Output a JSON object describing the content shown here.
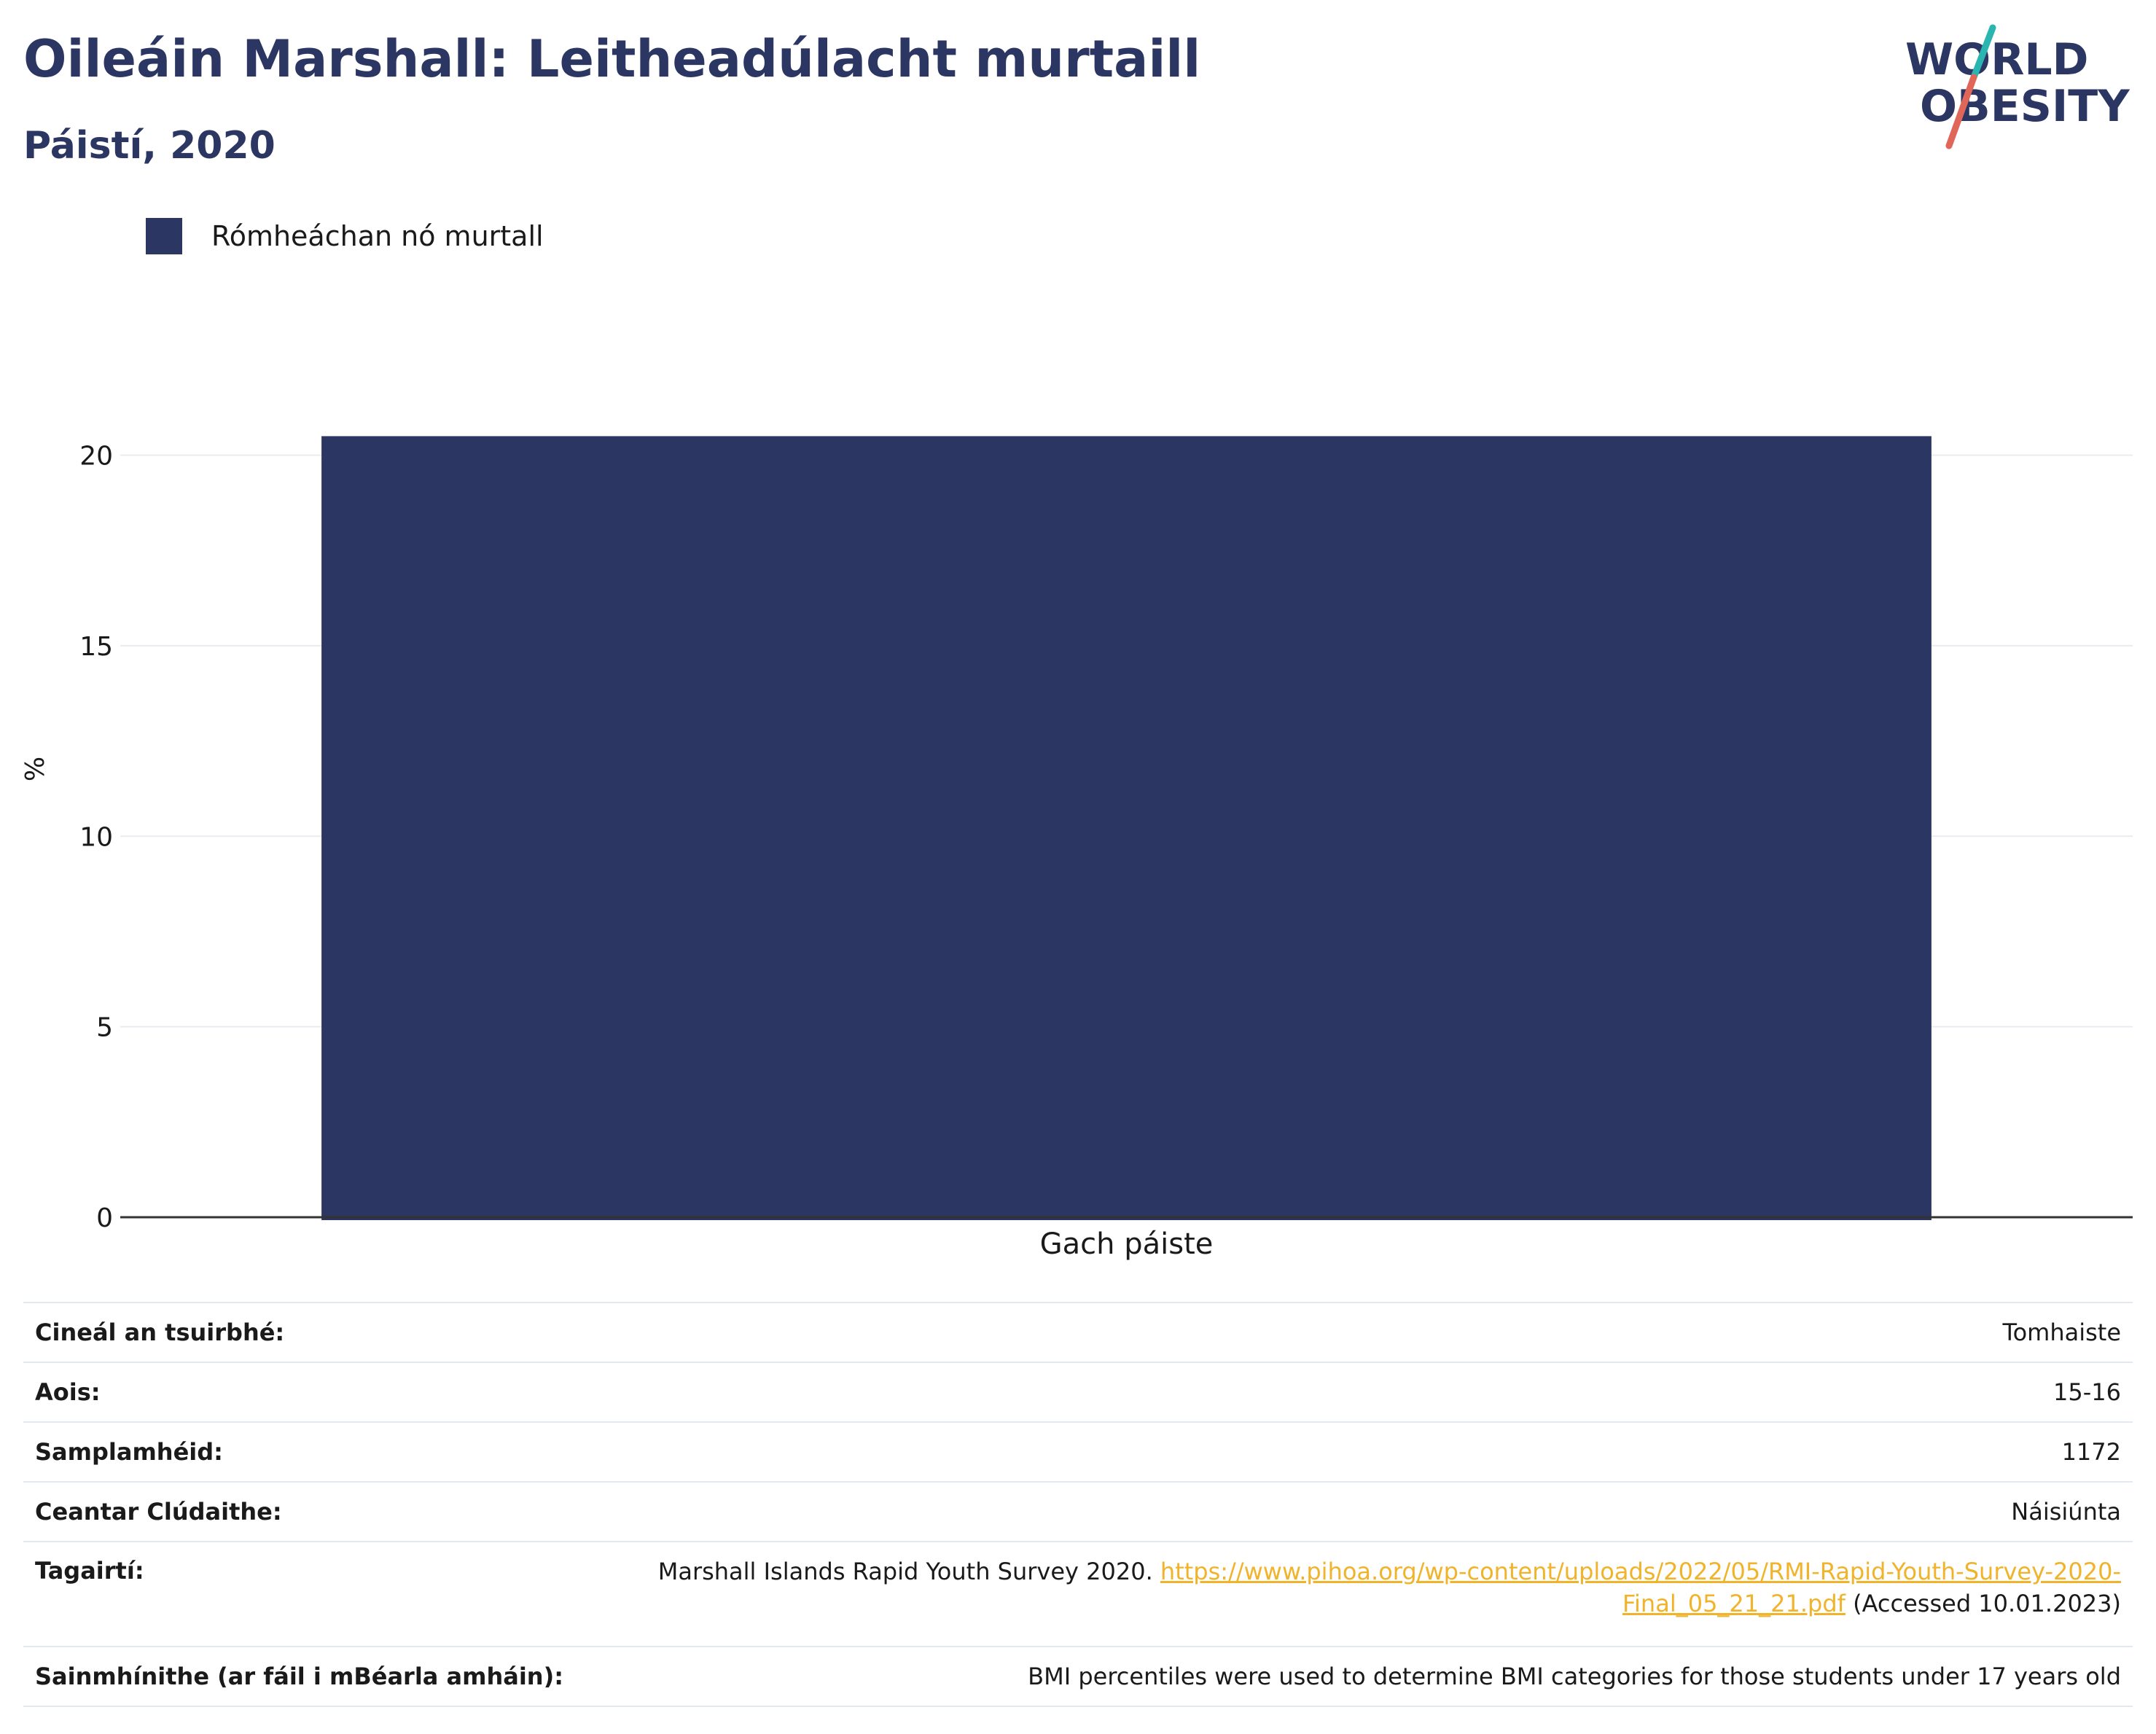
{
  "header": {
    "title": "Oileáin Marshall: Leitheadúlacht murtaill",
    "subtitle": "Páistí, 2020"
  },
  "logo": {
    "line1": "WORLD",
    "line2": "OBESITY",
    "colors": {
      "text": "#2b3662",
      "slash_teal": "#2bb5b0",
      "slash_coral": "#e0665a"
    }
  },
  "colors": {
    "bar": "#2b3662",
    "title": "#2b3662",
    "grid": "#e8ecf0",
    "link": "#f0b32a"
  },
  "chart_data": {
    "type": "bar",
    "categories": [
      "Gach páiste"
    ],
    "series": [
      {
        "name": "Rómheáchan nó murtall",
        "values": [
          20.5
        ]
      }
    ],
    "ylabel": "%",
    "xlabel": "",
    "ylim": [
      0,
      22
    ],
    "yticks": [
      0,
      5,
      10,
      15,
      20
    ],
    "grid": true,
    "legend_position": "top-left"
  },
  "info": {
    "rows": [
      {
        "label": "Cineál an tsuirbhé:",
        "value": "Tomhaiste"
      },
      {
        "label": "Aois:",
        "value": "15-16"
      },
      {
        "label": "Samplamhéid:",
        "value": "1172"
      },
      {
        "label": "Ceantar Clúdaithe:",
        "value": "Náisiúnta"
      }
    ],
    "references": {
      "label": "Tagairtí:",
      "text_before": "Marshall Islands Rapid Youth Survey 2020. ",
      "link": "https://www.pihoa.org/wp-content/uploads/2022/05/RMI-Rapid-Youth-Survey-2020-Final_05_21_21.pdf",
      "text_after": " (Accessed 10.01.2023)"
    },
    "definitions": {
      "label": "Sainmhínithe (ar fáil i mBéarla amháin):",
      "value": "BMI percentiles were used to determine BMI categories for those students under 17 years old"
    }
  }
}
